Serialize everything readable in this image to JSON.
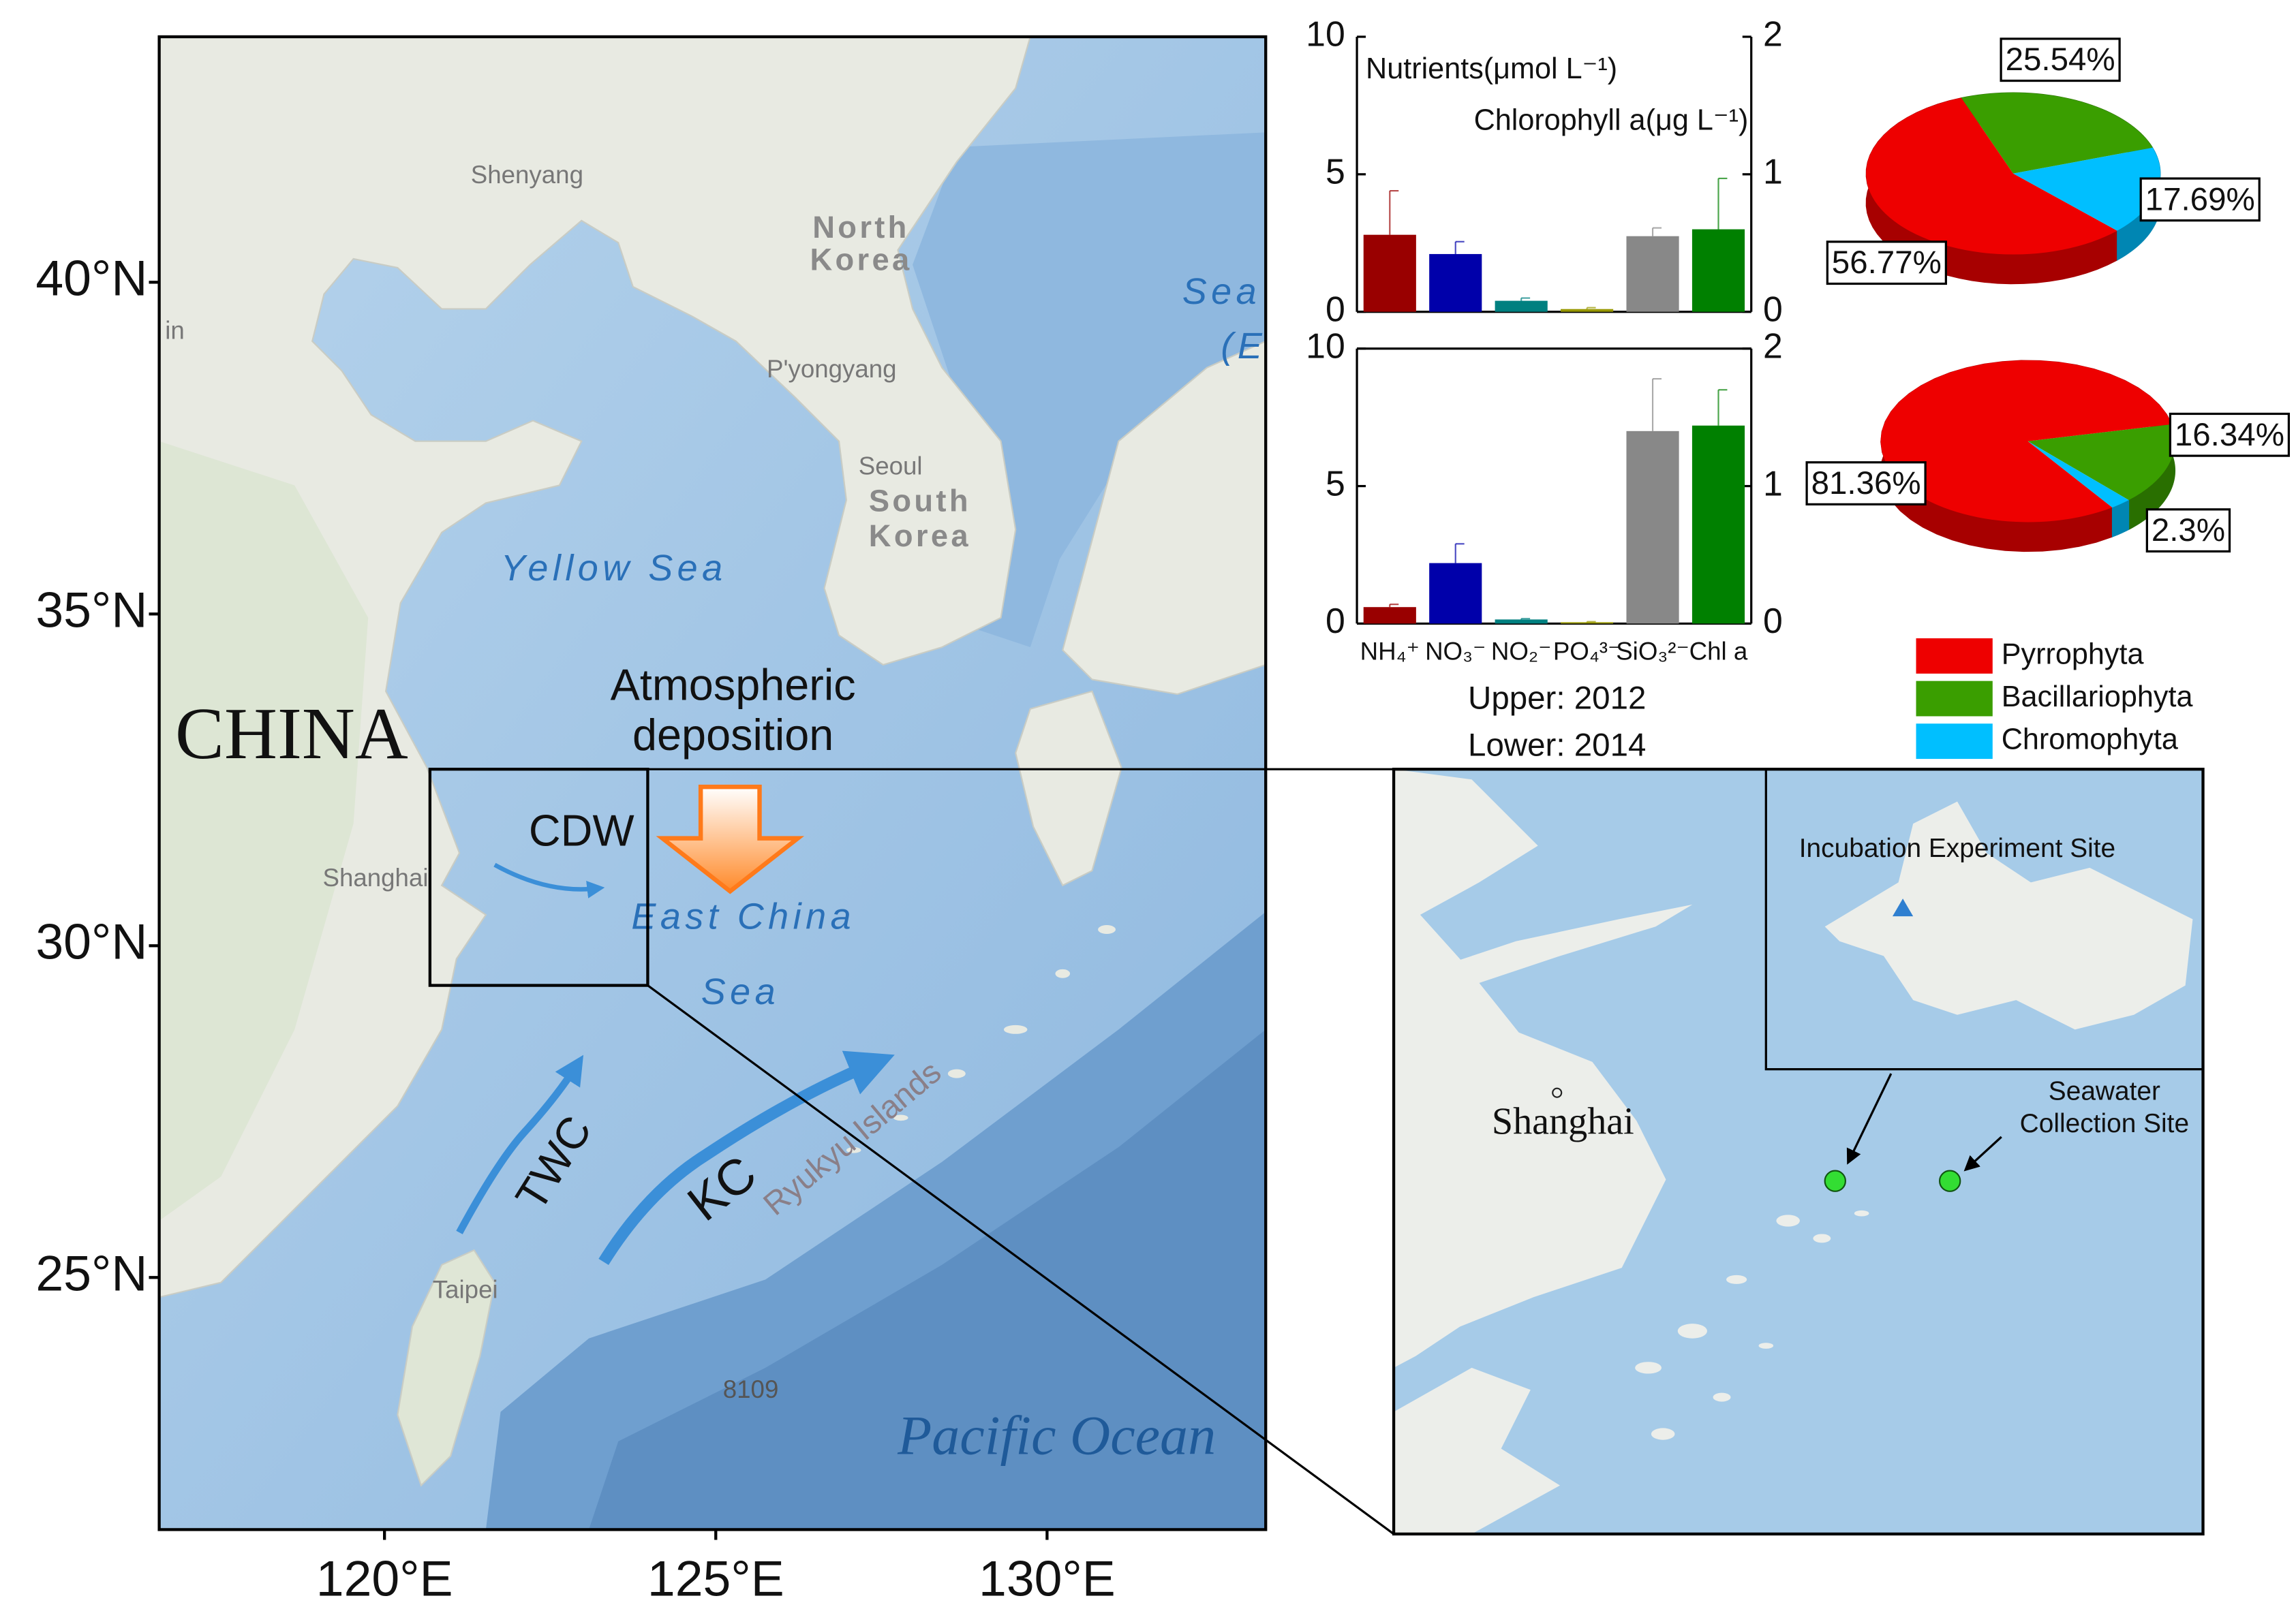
{
  "map": {
    "xlim": [
      116.6,
      133.3
    ],
    "ylim": [
      21.2,
      43.7
    ],
    "xticks": [
      {
        "value": 120,
        "label": "120°E"
      },
      {
        "value": 125,
        "label": "125°E"
      },
      {
        "value": 130,
        "label": "130°E"
      }
    ],
    "yticks": [
      {
        "value": 25,
        "label": "25°N"
      },
      {
        "value": 30,
        "label": "30°N"
      },
      {
        "value": 35,
        "label": "35°N"
      },
      {
        "value": 40,
        "label": "40°N"
      }
    ],
    "places": {
      "shenyang": "Shenyang",
      "north_korea": [
        "North",
        "Korea"
      ],
      "pyongyang": "P'yongyang",
      "seoul": "Seoul",
      "south_korea": [
        "South",
        "Korea"
      ],
      "yellow_sea": "Yellow Sea",
      "china": "CHINA",
      "shanghai": "Shanghai",
      "east_china_sea": [
        "East China",
        "Sea"
      ],
      "taipei": "Taipei",
      "ryukyu": "Ryukyu Islands",
      "depth": "8109",
      "pacific": "Pacific Ocean",
      "sea_e": [
        "Sea",
        "(E"
      ],
      "edge": "in"
    },
    "annotations": {
      "deposition": [
        "Atmospheric",
        "deposition"
      ],
      "cdw": "CDW",
      "twc": "TWC",
      "kc": "KC"
    }
  },
  "inset": {
    "shanghai": "Shanghai",
    "incubation": "Incubation Experiment Site",
    "seawater": [
      "Seawater",
      "Collection Site"
    ]
  },
  "chart_data": [
    {
      "type": "bar",
      "ylabel": "Nutrients(μmol L⁻¹)",
      "y2label": "Chlorophyll a(μg L⁻¹)",
      "categories": [
        null,
        null,
        null,
        null,
        null,
        null
      ],
      "colors": [
        "#990000",
        "#0000aa",
        "#008080",
        "#999900",
        "#888888",
        "#008000"
      ],
      "ylim": [
        0,
        10
      ],
      "yticks": [
        0,
        5,
        10
      ],
      "y2lim": [
        0,
        2
      ],
      "y2ticks": [
        0,
        1,
        2
      ],
      "series": [
        {
          "values": [
            2.8,
            2.1,
            0.4,
            0.1,
            2.75,
            null
          ],
          "errors": [
            1.6,
            0.45,
            0.1,
            0.05,
            0.3,
            null
          ]
        },
        {
          "axis": "y2",
          "values": [
            null,
            null,
            null,
            null,
            null,
            0.6
          ],
          "errors": [
            null,
            null,
            null,
            null,
            null,
            0.37
          ]
        }
      ]
    },
    {
      "type": "bar",
      "categories": [
        "NH₄⁺",
        "NO₃⁻",
        "NO₂⁻",
        "PO₄³⁻",
        "SiO₃²⁻",
        "Chl a"
      ],
      "colors": [
        "#990000",
        "#0000aa",
        "#008080",
        "#999900",
        "#888888",
        "#008000"
      ],
      "ylim": [
        0,
        10
      ],
      "yticks": [
        0,
        5,
        10
      ],
      "y2lim": [
        0,
        2
      ],
      "y2ticks": [
        0,
        1,
        2
      ],
      "notes": [
        "Upper: 2012",
        "Lower: 2014"
      ],
      "series": [
        {
          "values": [
            0.6,
            2.2,
            0.15,
            0.05,
            7.0,
            null
          ],
          "errors": [
            0.1,
            0.7,
            0.03,
            0.02,
            1.9,
            null
          ]
        },
        {
          "axis": "y2",
          "values": [
            null,
            null,
            null,
            null,
            null,
            1.44
          ],
          "errors": [
            null,
            null,
            null,
            null,
            null,
            0.26
          ]
        }
      ]
    },
    {
      "type": "pie",
      "values": [
        56.77,
        25.54,
        17.69
      ],
      "value_labels": [
        "56.77%",
        "25.54%",
        "17.69%"
      ],
      "colors": [
        "#ee0000",
        "#3a9e00",
        "#00bfff"
      ]
    },
    {
      "type": "pie",
      "values": [
        81.36,
        16.34,
        2.3
      ],
      "value_labels": [
        "81.36%",
        "16.34%",
        "2.3%"
      ],
      "colors": [
        "#ee0000",
        "#3a9e00",
        "#00bfff"
      ],
      "categories": [
        "Pyrrophyta",
        "Bacillariophyta",
        "Chromophyta"
      ],
      "legend": "lower right"
    }
  ]
}
